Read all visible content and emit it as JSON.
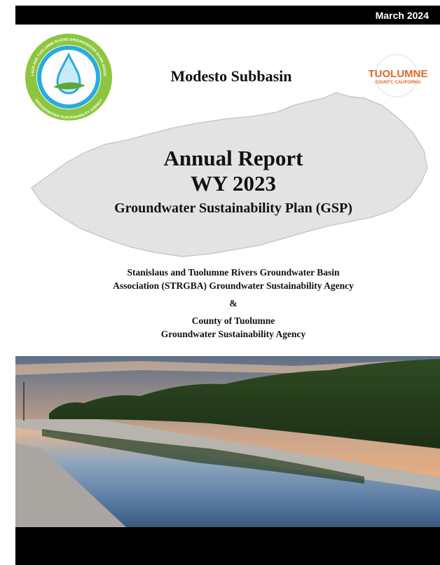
{
  "header": {
    "date": "March 2024"
  },
  "logos": {
    "left_ring_top": "STANISLAUS AND TUOLUMNE RIVERS GROUNDWATER BASIN ASSOCIATION",
    "left_ring_bottom": "GROUNDWATER SUSTAINABILITY AGENCY",
    "right_name": "TUOLUMNE",
    "right_sub": "COUNTY, CALIFORNIA"
  },
  "cover": {
    "subbasin": "Modesto Subbasin",
    "title": "Annual Report",
    "year": "WY 2023",
    "subtitle": "Groundwater Sustainability Plan (GSP)",
    "agencies": [
      "Stanislaus and Tuolumne Rivers Groundwater Basin",
      "Association (STRGBA) Groundwater Sustainability Agency"
    ],
    "ampersand": "&",
    "county": [
      "County of Tuolumne",
      "Groundwater Sustainability Agency"
    ]
  }
}
